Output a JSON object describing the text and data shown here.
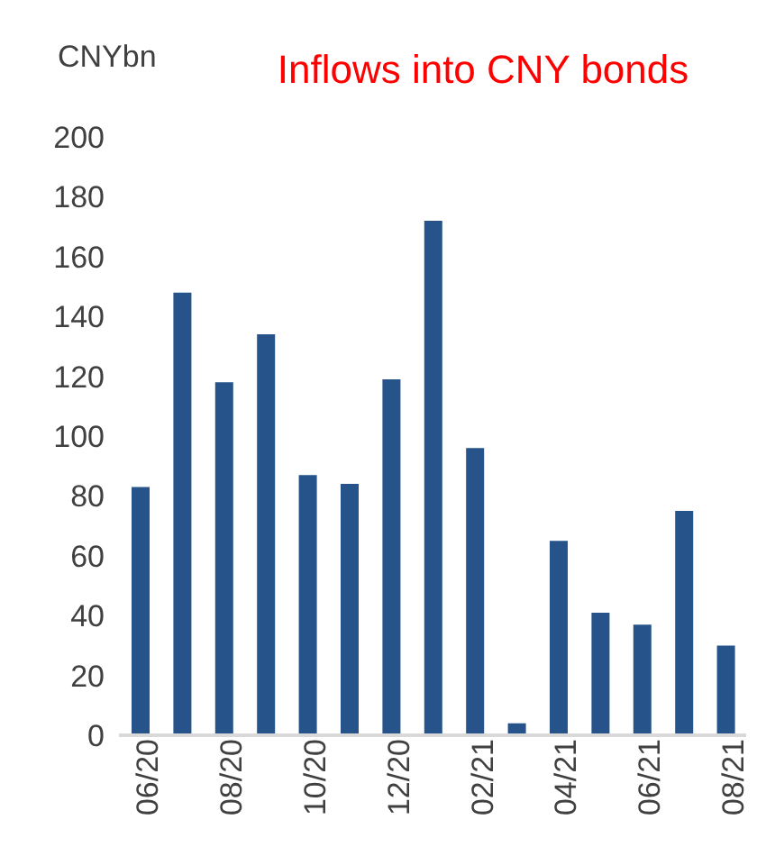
{
  "chart_data": {
    "type": "bar",
    "title": "Inflows into CNY bonds",
    "ylabel": "CNYbn",
    "categories": [
      "06/20",
      null,
      "08/20",
      null,
      "10/20",
      null,
      "12/20",
      null,
      "02/21",
      null,
      "04/21",
      null,
      "06/21",
      null,
      "08/21"
    ],
    "values": [
      83,
      148,
      118,
      134,
      87,
      84,
      119,
      172,
      96,
      4,
      65,
      41,
      37,
      75,
      30
    ],
    "color": "#25538a",
    "ylim": [
      0,
      200
    ],
    "yticks": [
      0,
      20,
      40,
      60,
      80,
      100,
      120,
      140,
      160,
      180,
      200
    ],
    "grid": false
  }
}
